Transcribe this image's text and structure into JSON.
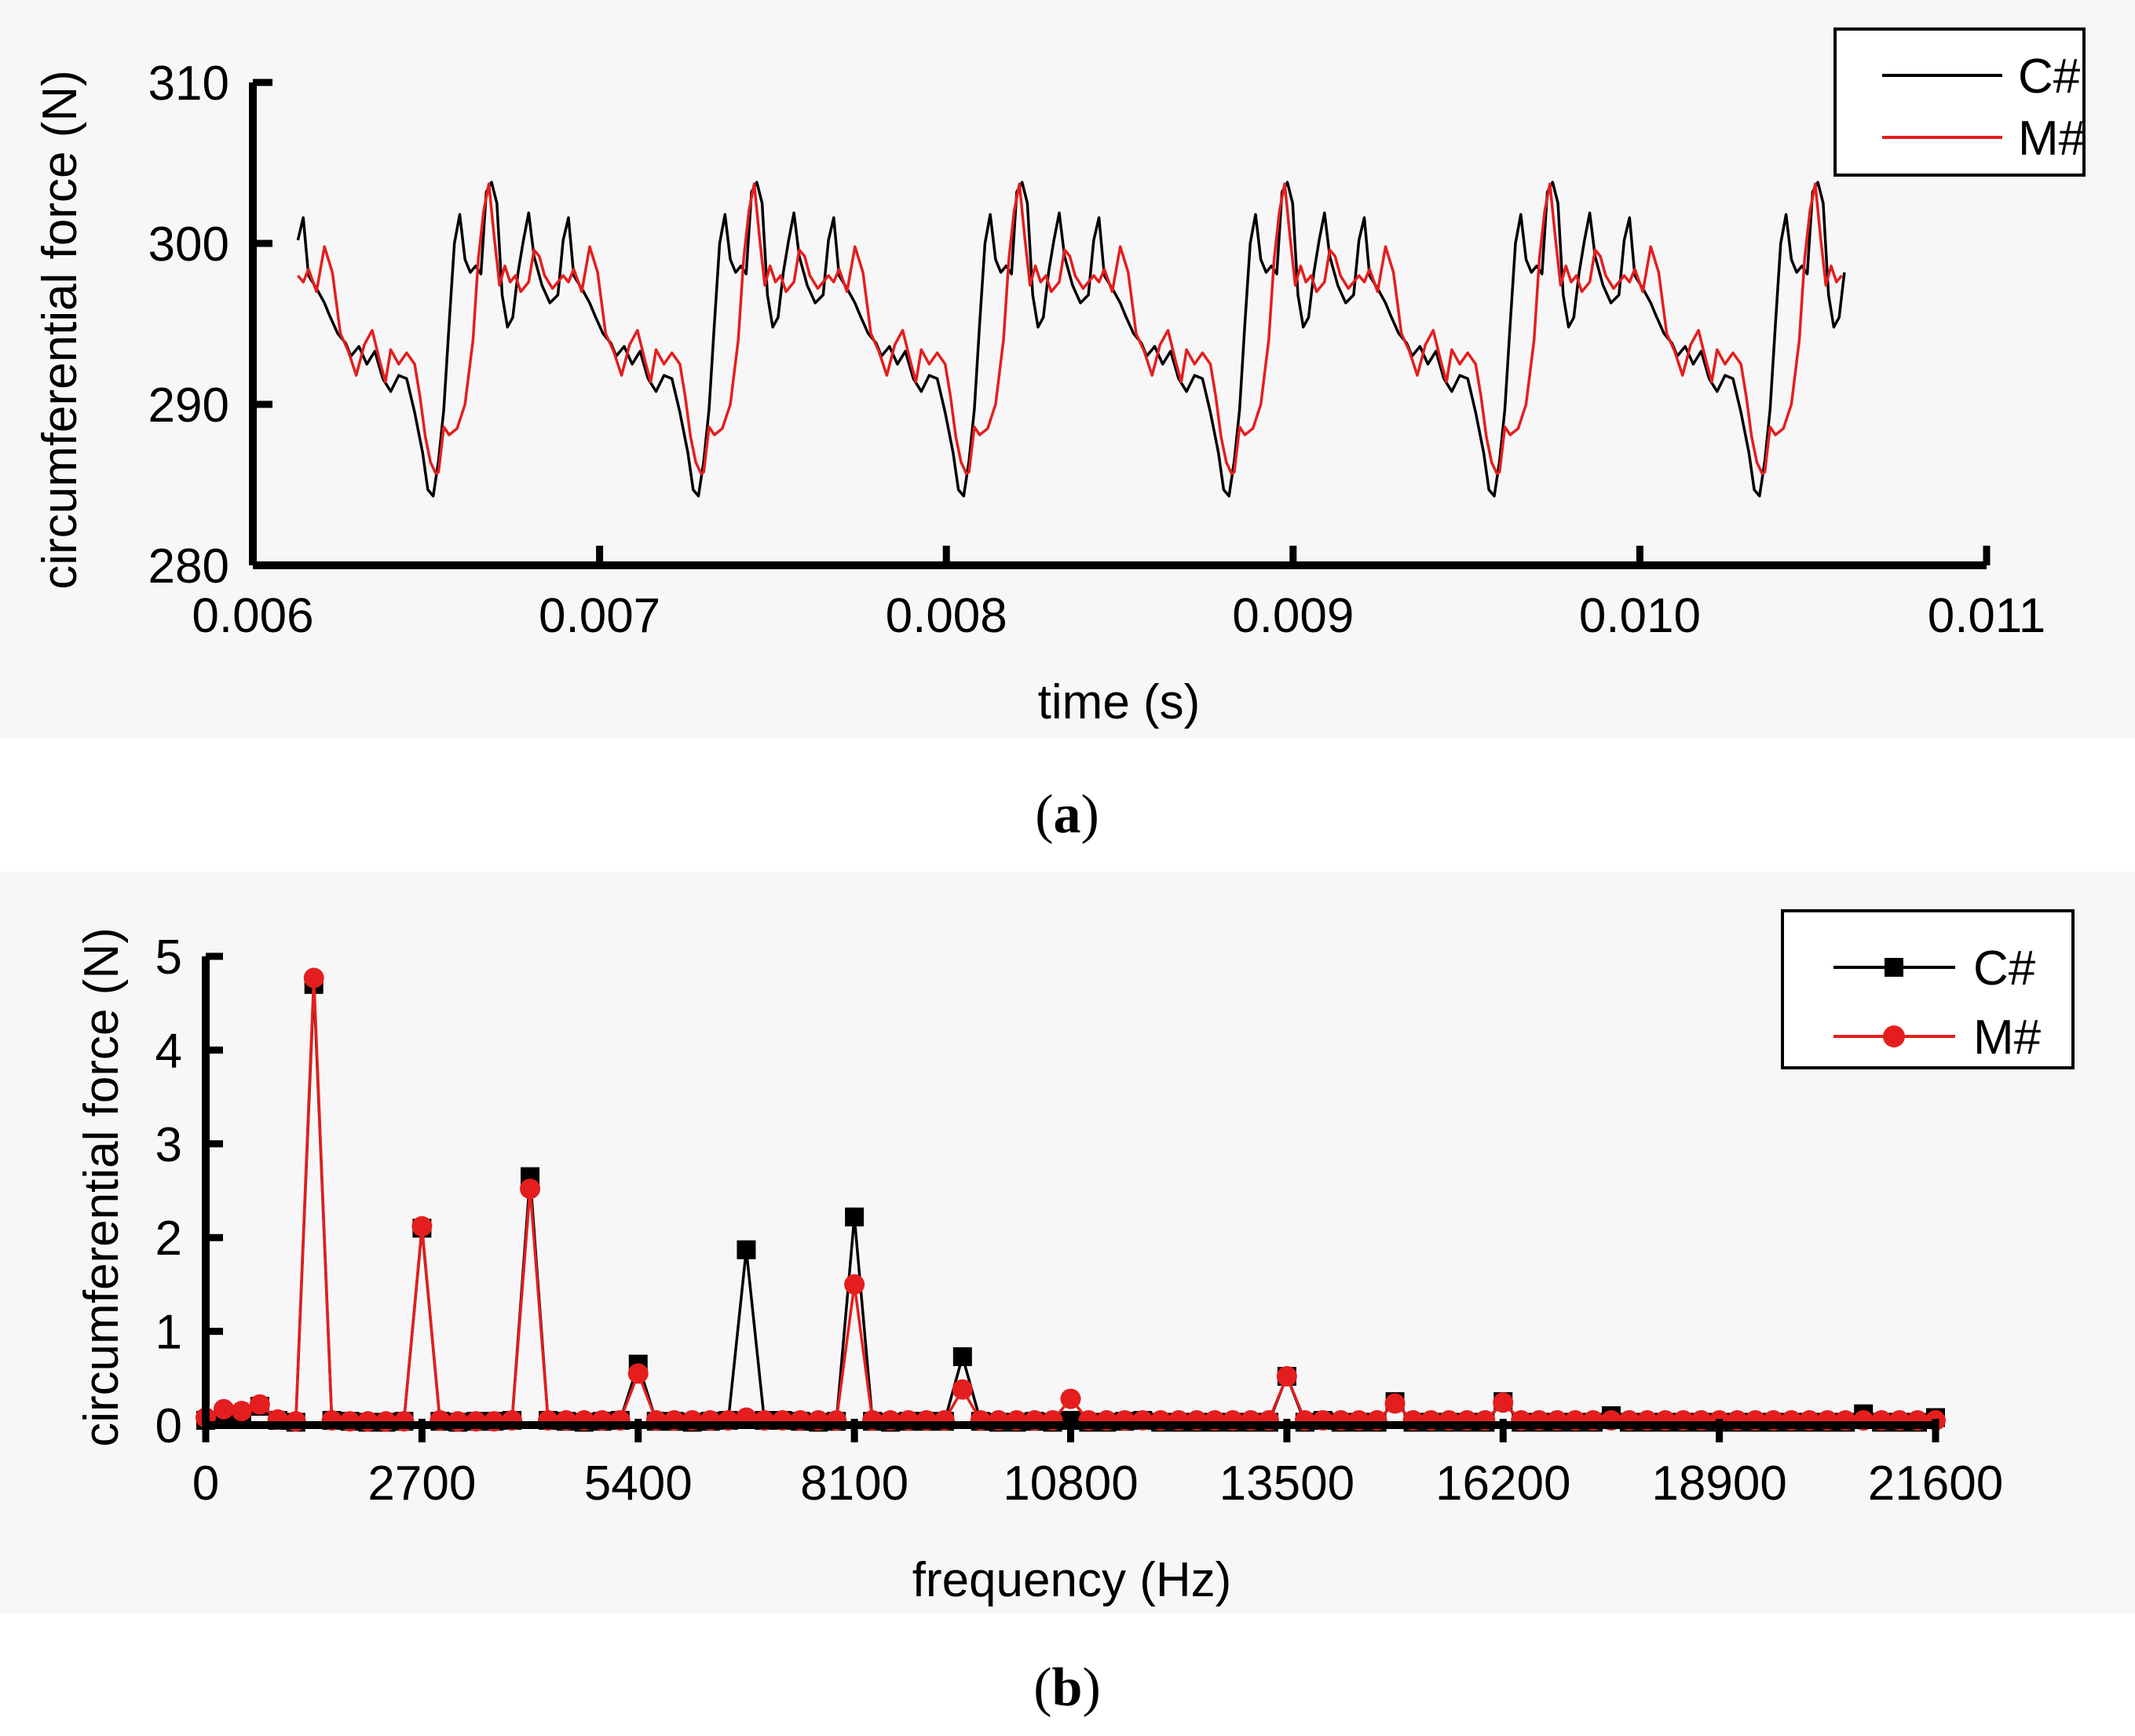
{
  "chart_data": [
    {
      "id": "a",
      "type": "line",
      "panel_label_open": "(",
      "panel_label_letter": "a",
      "panel_label_close": ")",
      "xlabel": "time (s)",
      "ylabel": "circumferential force (N)",
      "xlim": [
        0.006,
        0.011
      ],
      "ylim": [
        280,
        310
      ],
      "xticks": [
        "0.006",
        "0.007",
        "0.008",
        "0.009",
        "0.010",
        "0.011"
      ],
      "yticks": [
        "280",
        "290",
        "300",
        "310"
      ],
      "x_start": 0.00613,
      "x_end": 0.01059,
      "period": 0.000765,
      "legend": {
        "position": "top-right",
        "entries": [
          "C#",
          "M#"
        ]
      },
      "series": [
        {
          "name": "C#",
          "color": "#000000",
          "period_profile": [
            [
              0.0,
              300.2
            ],
            [
              0.02,
              301.6
            ],
            [
              0.04,
              298.0
            ],
            [
              0.07,
              297.2
            ],
            [
              0.1,
              296.3
            ],
            [
              0.12,
              295.5
            ],
            [
              0.15,
              294.4
            ],
            [
              0.18,
              293.8
            ],
            [
              0.2,
              293.0
            ],
            [
              0.23,
              293.6
            ],
            [
              0.26,
              292.5
            ],
            [
              0.29,
              293.3
            ],
            [
              0.32,
              291.6
            ],
            [
              0.35,
              290.8
            ],
            [
              0.38,
              291.8
            ],
            [
              0.41,
              291.6
            ],
            [
              0.44,
              289.5
            ],
            [
              0.47,
              287.0
            ],
            [
              0.49,
              284.7
            ],
            [
              0.51,
              284.3
            ],
            [
              0.53,
              286.5
            ],
            [
              0.55,
              289.7
            ],
            [
              0.57,
              295.0
            ],
            [
              0.59,
              300.0
            ],
            [
              0.61,
              301.8
            ],
            [
              0.63,
              299.0
            ],
            [
              0.65,
              298.2
            ],
            [
              0.67,
              298.6
            ],
            [
              0.69,
              298.1
            ],
            [
              0.71,
              303.2
            ],
            [
              0.73,
              303.8
            ],
            [
              0.75,
              302.5
            ],
            [
              0.77,
              296.8
            ],
            [
              0.79,
              294.8
            ],
            [
              0.81,
              295.4
            ],
            [
              0.83,
              298.2
            ],
            [
              0.85,
              300.2
            ],
            [
              0.87,
              301.9
            ],
            [
              0.89,
              299.2
            ],
            [
              0.92,
              297.4
            ],
            [
              0.95,
              296.3
            ],
            [
              0.98,
              296.8
            ],
            [
              1.0,
              300.2
            ]
          ]
        },
        {
          "name": "M#",
          "color": "#e41e1e",
          "period_profile": [
            [
              0.0,
              298.0
            ],
            [
              0.02,
              297.6
            ],
            [
              0.04,
              298.4
            ],
            [
              0.07,
              297.0
            ],
            [
              0.1,
              299.8
            ],
            [
              0.13,
              298.2
            ],
            [
              0.16,
              294.4
            ],
            [
              0.19,
              293.3
            ],
            [
              0.22,
              291.8
            ],
            [
              0.25,
              293.7
            ],
            [
              0.28,
              294.6
            ],
            [
              0.31,
              292.6
            ],
            [
              0.33,
              291.4
            ],
            [
              0.35,
              293.4
            ],
            [
              0.38,
              292.5
            ],
            [
              0.41,
              293.2
            ],
            [
              0.44,
              292.5
            ],
            [
              0.46,
              290.5
            ],
            [
              0.48,
              288.0
            ],
            [
              0.5,
              286.4
            ],
            [
              0.52,
              285.7
            ],
            [
              0.53,
              285.8
            ],
            [
              0.55,
              288.6
            ],
            [
              0.57,
              288.1
            ],
            [
              0.6,
              288.5
            ],
            [
              0.63,
              290.0
            ],
            [
              0.66,
              294.0
            ],
            [
              0.68,
              299.0
            ],
            [
              0.7,
              302.0
            ],
            [
              0.72,
              303.7
            ],
            [
              0.74,
              300.4
            ],
            [
              0.76,
              297.4
            ],
            [
              0.78,
              298.6
            ],
            [
              0.8,
              297.6
            ],
            [
              0.82,
              298.0
            ],
            [
              0.84,
              297.0
            ],
            [
              0.87,
              297.6
            ],
            [
              0.89,
              299.6
            ],
            [
              0.91,
              299.2
            ],
            [
              0.93,
              298.0
            ],
            [
              0.96,
              297.2
            ],
            [
              1.0,
              298.0
            ]
          ]
        }
      ]
    },
    {
      "id": "b",
      "type": "line",
      "panel_label_open": "(",
      "panel_label_letter": "b",
      "panel_label_close": ")",
      "xlabel": "frequency (Hz)",
      "ylabel": "circumferential force (N)",
      "xlim": [
        0,
        21600
      ],
      "ylim": [
        0,
        5
      ],
      "xticks": [
        "0",
        "2700",
        "5400",
        "8100",
        "10800",
        "13500",
        "16200",
        "18900",
        "21600"
      ],
      "yticks": [
        "0",
        "1",
        "2",
        "3",
        "4",
        "5"
      ],
      "legend": {
        "position": "top-right",
        "entries": [
          "C#",
          "M#"
        ]
      },
      "series": [
        {
          "name": "C#",
          "color": "#000000",
          "marker": "square",
          "x": [
            0,
            225,
            450,
            675,
            900,
            1125,
            1350,
            1575,
            1800,
            2025,
            2250,
            2475,
            2700,
            2925,
            3150,
            3375,
            3600,
            3825,
            4050,
            4275,
            4500,
            4725,
            4950,
            5175,
            5400,
            5625,
            5850,
            6075,
            6300,
            6525,
            6750,
            6975,
            7200,
            7425,
            7650,
            7875,
            8100,
            8325,
            8550,
            8775,
            9000,
            9225,
            9450,
            9675,
            9900,
            10125,
            10350,
            10575,
            10800,
            11025,
            11250,
            11475,
            11700,
            11925,
            12150,
            12375,
            12600,
            12825,
            13050,
            13275,
            13500,
            13725,
            13950,
            14175,
            14400,
            14625,
            14850,
            15075,
            15300,
            15525,
            15750,
            15975,
            16200,
            16425,
            16650,
            16875,
            17100,
            17325,
            17550,
            17775,
            18000,
            18225,
            18450,
            18675,
            18900,
            19125,
            19350,
            19575,
            19800,
            20025,
            20250,
            20475,
            20700,
            20925,
            21150,
            21375,
            21600
          ],
          "values": [
            0.05,
            0.12,
            0.1,
            0.2,
            0.05,
            0.03,
            4.7,
            0.05,
            0.04,
            0.03,
            0.03,
            0.04,
            2.1,
            0.04,
            0.03,
            0.04,
            0.04,
            0.05,
            2.65,
            0.05,
            0.04,
            0.03,
            0.04,
            0.05,
            0.65,
            0.04,
            0.04,
            0.03,
            0.04,
            0.05,
            1.87,
            0.05,
            0.05,
            0.04,
            0.03,
            0.04,
            2.22,
            0.04,
            0.03,
            0.04,
            0.04,
            0.04,
            0.73,
            0.04,
            0.03,
            0.03,
            0.04,
            0.03,
            0.05,
            0.03,
            0.03,
            0.04,
            0.05,
            0.03,
            0.03,
            0.03,
            0.03,
            0.03,
            0.03,
            0.03,
            0.52,
            0.03,
            0.05,
            0.03,
            0.03,
            0.03,
            0.25,
            0.03,
            0.03,
            0.03,
            0.03,
            0.03,
            0.25,
            0.03,
            0.03,
            0.03,
            0.03,
            0.03,
            0.1,
            0.03,
            0.03,
            0.03,
            0.03,
            0.03,
            0.03,
            0.03,
            0.03,
            0.03,
            0.03,
            0.03,
            0.03,
            0.03,
            0.12,
            0.03,
            0.03,
            0.03,
            0.08
          ]
        },
        {
          "name": "M#",
          "color": "#e41e1e",
          "marker": "circle",
          "x": [
            0,
            225,
            450,
            675,
            900,
            1125,
            1350,
            1575,
            1800,
            2025,
            2250,
            2475,
            2700,
            2925,
            3150,
            3375,
            3600,
            3825,
            4050,
            4275,
            4500,
            4725,
            4950,
            5175,
            5400,
            5625,
            5850,
            6075,
            6300,
            6525,
            6750,
            6975,
            7200,
            7425,
            7650,
            7875,
            8100,
            8325,
            8550,
            8775,
            9000,
            9225,
            9450,
            9675,
            9900,
            10125,
            10350,
            10575,
            10800,
            11025,
            11250,
            11475,
            11700,
            11925,
            12150,
            12375,
            12600,
            12825,
            13050,
            13275,
            13500,
            13725,
            13950,
            14175,
            14400,
            14625,
            14850,
            15075,
            15300,
            15525,
            15750,
            15975,
            16200,
            16425,
            16650,
            16875,
            17100,
            17325,
            17550,
            17775,
            18000,
            18225,
            18450,
            18675,
            18900,
            19125,
            19350,
            19575,
            19800,
            20025,
            20250,
            20475,
            20700,
            20925,
            21150,
            21375,
            21600
          ],
          "values": [
            0.08,
            0.17,
            0.15,
            0.22,
            0.06,
            0.04,
            4.77,
            0.05,
            0.04,
            0.04,
            0.04,
            0.04,
            2.12,
            0.05,
            0.04,
            0.04,
            0.04,
            0.05,
            2.52,
            0.05,
            0.05,
            0.05,
            0.05,
            0.05,
            0.55,
            0.05,
            0.05,
            0.05,
            0.05,
            0.05,
            0.08,
            0.05,
            0.05,
            0.05,
            0.05,
            0.05,
            1.5,
            0.05,
            0.05,
            0.05,
            0.05,
            0.05,
            0.38,
            0.05,
            0.05,
            0.05,
            0.05,
            0.05,
            0.28,
            0.05,
            0.05,
            0.05,
            0.05,
            0.05,
            0.05,
            0.05,
            0.05,
            0.05,
            0.05,
            0.05,
            0.52,
            0.05,
            0.05,
            0.05,
            0.05,
            0.05,
            0.23,
            0.05,
            0.05,
            0.05,
            0.05,
            0.05,
            0.24,
            0.05,
            0.05,
            0.05,
            0.05,
            0.05,
            0.05,
            0.05,
            0.05,
            0.05,
            0.05,
            0.05,
            0.05,
            0.05,
            0.05,
            0.05,
            0.05,
            0.05,
            0.05,
            0.05,
            0.05,
            0.05,
            0.05,
            0.05,
            0.05
          ]
        }
      ]
    }
  ]
}
